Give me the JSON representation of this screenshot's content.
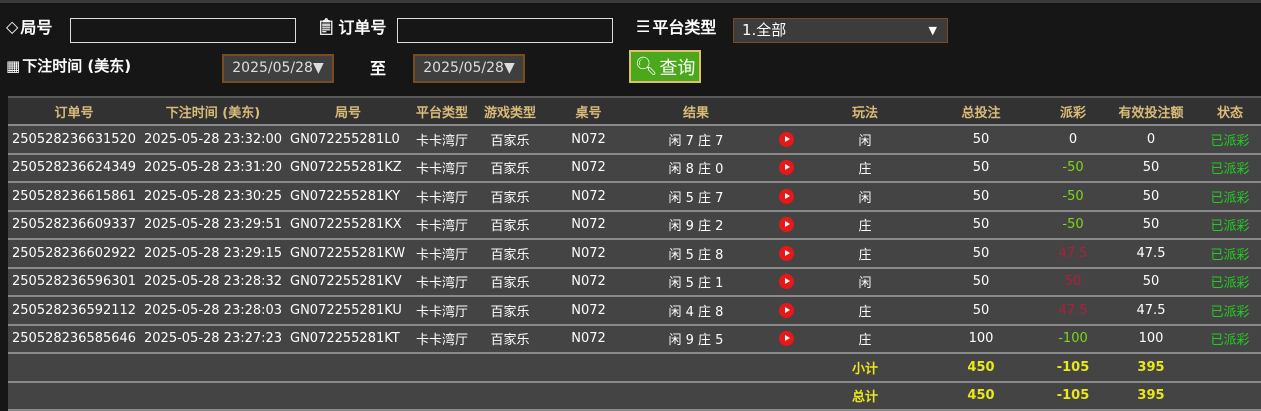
{
  "filters": {
    "round_label": "局号",
    "round_value": "",
    "order_label": "订单号",
    "order_value": "",
    "platform_label": "平台类型",
    "platform_selected": "1.全部",
    "time_label": "下注时间 (美东)",
    "date_from": "2025/05/28",
    "to_label": "至",
    "date_to": "2025/05/28",
    "query_label": "查询"
  },
  "table": {
    "headers": [
      "订单号",
      "下注时间 (美东)",
      "局号",
      "平台类型",
      "游戏类型",
      "桌号",
      "结果",
      "",
      "玩法",
      "总投注",
      "派彩",
      "有效投注额",
      "状态"
    ],
    "rows": [
      {
        "order": "250528236631520",
        "time": "2025-05-28 23:32:00",
        "round": "GN072255281L0",
        "platform": "卡卡湾厅",
        "game": "百家乐",
        "table": "N072",
        "result": "闲 7 庄 7",
        "play": "闲",
        "bet": "50",
        "payout": "0",
        "payout_color": "#ffffff",
        "valid": "0",
        "status": "已派彩"
      },
      {
        "order": "250528236624349",
        "time": "2025-05-28 23:31:20",
        "round": "GN072255281KZ",
        "platform": "卡卡湾厅",
        "game": "百家乐",
        "table": "N072",
        "result": "闲 8 庄 0",
        "play": "庄",
        "bet": "50",
        "payout": "-50",
        "payout_color": "#7fd61a",
        "valid": "50",
        "status": "已派彩"
      },
      {
        "order": "250528236615861",
        "time": "2025-05-28 23:30:25",
        "round": "GN072255281KY",
        "platform": "卡卡湾厅",
        "game": "百家乐",
        "table": "N072",
        "result": "闲 5 庄 7",
        "play": "闲",
        "bet": "50",
        "payout": "-50",
        "payout_color": "#7fd61a",
        "valid": "50",
        "status": "已派彩"
      },
      {
        "order": "250528236609337",
        "time": "2025-05-28 23:29:51",
        "round": "GN072255281KX",
        "platform": "卡卡湾厅",
        "game": "百家乐",
        "table": "N072",
        "result": "闲 9 庄 2",
        "play": "庄",
        "bet": "50",
        "payout": "-50",
        "payout_color": "#7fd61a",
        "valid": "50",
        "status": "已派彩"
      },
      {
        "order": "250528236602922",
        "time": "2025-05-28 23:29:15",
        "round": "GN072255281KW",
        "platform": "卡卡湾厅",
        "game": "百家乐",
        "table": "N072",
        "result": "闲 5 庄 8",
        "play": "庄",
        "bet": "50",
        "payout": "47.5",
        "payout_color": "#b0203a",
        "valid": "47.5",
        "status": "已派彩"
      },
      {
        "order": "250528236596301",
        "time": "2025-05-28 23:28:32",
        "round": "GN072255281KV",
        "platform": "卡卡湾厅",
        "game": "百家乐",
        "table": "N072",
        "result": "闲 5 庄 1",
        "play": "闲",
        "bet": "50",
        "payout": "50",
        "payout_color": "#b0203a",
        "valid": "50",
        "status": "已派彩"
      },
      {
        "order": "250528236592112",
        "time": "2025-05-28 23:28:03",
        "round": "GN072255281KU",
        "platform": "卡卡湾厅",
        "game": "百家乐",
        "table": "N072",
        "result": "闲 4 庄 8",
        "play": "庄",
        "bet": "50",
        "payout": "47.5",
        "payout_color": "#b0203a",
        "valid": "47.5",
        "status": "已派彩"
      },
      {
        "order": "250528236585646",
        "time": "2025-05-28 23:27:23",
        "round": "GN072255281KT",
        "platform": "卡卡湾厅",
        "game": "百家乐",
        "table": "N072",
        "result": "闲 9 庄 5",
        "play": "庄",
        "bet": "100",
        "payout": "-100",
        "payout_color": "#7fd61a",
        "valid": "100",
        "status": "已派彩"
      }
    ],
    "subtotal": {
      "label": "小计",
      "bet": "450",
      "payout": "-105",
      "valid": "395"
    },
    "total": {
      "label": "总计",
      "bet": "450",
      "payout": "-105",
      "valid": "395"
    }
  },
  "colors": {
    "header_text": "#d8bb78",
    "status": "#22cc22",
    "summary": "#e8e81a",
    "query_button": "#4aa81a"
  }
}
